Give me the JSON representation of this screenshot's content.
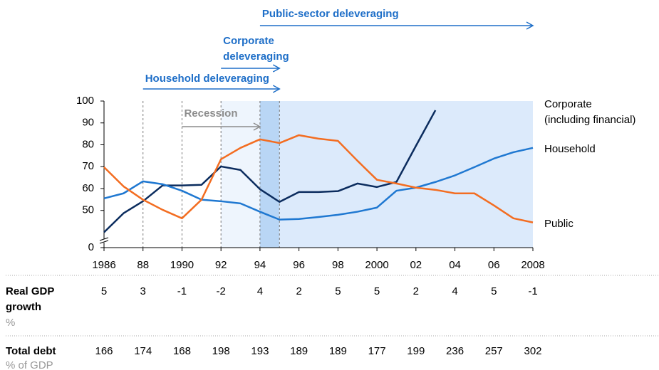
{
  "chart_data": {
    "type": "line",
    "x": [
      1986,
      1987,
      1988,
      1989,
      1990,
      1991,
      1992,
      1993,
      1994,
      1995,
      1996,
      1997,
      1998,
      1999,
      2000,
      2001,
      2002,
      2003,
      2004,
      2005,
      2006,
      2007,
      2008
    ],
    "series": [
      {
        "name": "Corporate",
        "name_note": "(including financial)",
        "color": "#0b2c5e",
        "values": [
          40,
          48.7,
          54.2,
          61.4,
          61.4,
          61.7,
          70.1,
          68.5,
          59.7,
          53.9,
          58.4,
          58.4,
          58.8,
          62.3,
          60.7,
          63,
          79.5,
          95.8,
          null,
          null,
          null,
          null,
          null
        ]
      },
      {
        "name": "Household",
        "color": "#1f78d1",
        "values": [
          55.5,
          57.8,
          63.3,
          62,
          59,
          54.9,
          54.2,
          53.2,
          49.4,
          45.8,
          46.1,
          47,
          48,
          49.4,
          51.3,
          59,
          60.4,
          63,
          66,
          69.8,
          73.7,
          76.6,
          78.6
        ]
      },
      {
        "name": "Public",
        "color": "#f36d21",
        "values": [
          69.8,
          61,
          54.9,
          50.3,
          46.4,
          54.9,
          73.4,
          78.6,
          82.5,
          80.8,
          84.4,
          82.8,
          81.8,
          72.7,
          64,
          62.3,
          60.4,
          59.4,
          57.8,
          57.8,
          52.3,
          46.4,
          44.5
        ]
      }
    ],
    "xlim": [
      1986,
      2008
    ],
    "xticks": [
      1986,
      {
        "value": 1988,
        "label": "88"
      },
      1990,
      {
        "value": 1992,
        "label": "92"
      },
      {
        "value": 1994,
        "label": "94"
      },
      {
        "value": 1996,
        "label": "96"
      },
      {
        "value": 1998,
        "label": "98"
      },
      2000,
      {
        "value": 2002,
        "label": "02"
      },
      {
        "value": 2004,
        "label": "04"
      },
      {
        "value": 2006,
        "label": "06"
      },
      2008
    ],
    "ylim": [
      33,
      100
    ],
    "yticks": [
      0,
      50,
      60,
      70,
      80,
      90,
      100
    ],
    "axis_break": true,
    "shaded_periods": [
      {
        "start": 1992,
        "end": 1994,
        "color": "#eef5fd"
      },
      {
        "start": 1994,
        "end": 1995,
        "color": "#b9d6f5"
      },
      {
        "start": 1995,
        "end": 2008,
        "color": "#dceafb"
      }
    ],
    "dashed_lines": [
      1988,
      1990,
      1992,
      1994,
      1995
    ],
    "annotations": [
      {
        "lines": [
          "Public-sector deleveraging"
        ],
        "start": 1994,
        "end": 2008,
        "style": "ann"
      },
      {
        "lines": [
          "Corporate",
          "deleveraging"
        ],
        "start": 1992,
        "end": 1995,
        "style": "ann"
      },
      {
        "lines": [
          "Household deleveraging"
        ],
        "start": 1988,
        "end": 1995,
        "style": "ann"
      },
      {
        "lines": [
          "Recession"
        ],
        "start": 1990,
        "end": 1994,
        "style": "rec"
      }
    ],
    "table": [
      {
        "label": [
          "Real GDP",
          "growth"
        ],
        "unit": "%",
        "values": [
          5,
          3,
          -1,
          -2,
          4,
          2,
          5,
          5,
          2,
          4,
          5,
          -1
        ]
      },
      {
        "label": [
          "Total debt"
        ],
        "unit": "% of GDP",
        "values": [
          166,
          174,
          168,
          198,
          193,
          189,
          189,
          177,
          199,
          236,
          257,
          302
        ]
      }
    ]
  }
}
